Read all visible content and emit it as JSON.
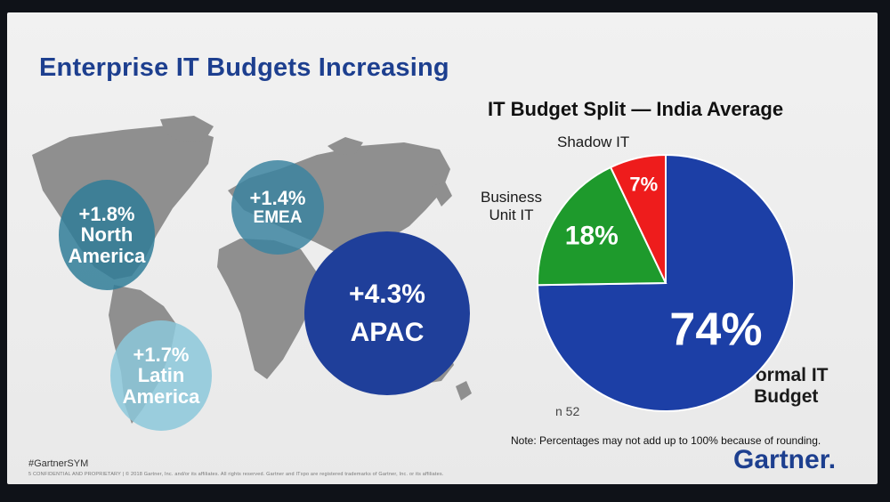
{
  "slide": {
    "title": "Enterprise IT Budgets Increasing",
    "hashtag": "#GartnerSYM",
    "footer": "5   CONFIDENTIAL AND PROPRIETARY  |  © 2018 Gartner, Inc. and/or its affiliates. All rights reserved. Gartner and ITxpo are registered trademarks of Gartner, Inc. or its affiliates.",
    "logo": "Gartner."
  },
  "regions": [
    {
      "pct": "+1.8%",
      "name": "North America",
      "line1": "North",
      "line2": "America"
    },
    {
      "pct": "+1.4%",
      "name": "EMEA"
    },
    {
      "pct": "+1.7%",
      "name": "Latin America",
      "line1": "Latin",
      "line2": "America"
    },
    {
      "pct": "+4.3%",
      "name": "APAC"
    }
  ],
  "chart_data": {
    "type": "pie",
    "title": "IT Budget Split — India Average",
    "labels": [
      "Formal IT Budget",
      "Business Unit IT",
      "Shadow IT"
    ],
    "values": [
      74,
      18,
      7
    ],
    "display": [
      "74%",
      "18%",
      "7%"
    ],
    "colors": [
      "#1c3fa6",
      "#1e9a2c",
      "#ee1c1c"
    ],
    "label_lines": {
      "shadow": "Shadow IT",
      "bu1": "Business",
      "bu2": "Unit IT",
      "formal1": "Formal IT",
      "formal2": "Budget"
    },
    "sample": "n 52",
    "note": "Note: Percentages may not add up to 100% because of rounding."
  }
}
